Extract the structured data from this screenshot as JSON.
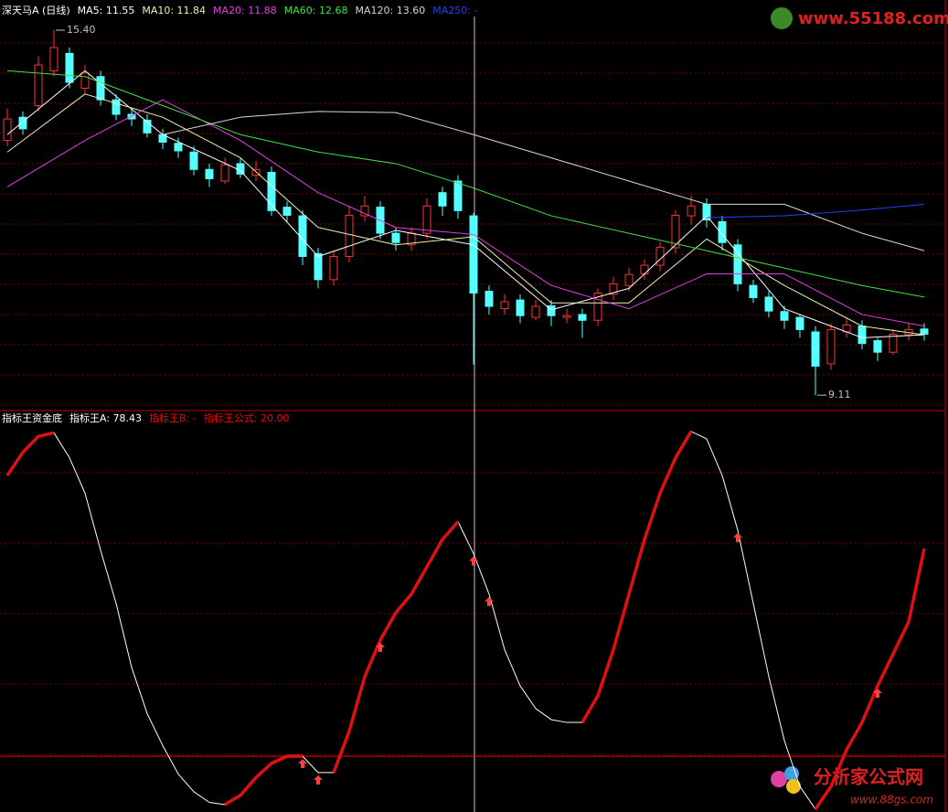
{
  "chart_data": [
    {
      "type": "candlestick",
      "title": "深天马A (日线)",
      "open": [
        13.5,
        13.9,
        14.1,
        14.7,
        15.0,
        14.4,
        14.6,
        14.2,
        13.95,
        13.85,
        13.6,
        13.45,
        13.3,
        13.0,
        12.8,
        13.1,
        12.9,
        12.95,
        12.35,
        12.2,
        11.55,
        11.1,
        11.5,
        12.2,
        12.35,
        11.9,
        11.7,
        11.9,
        12.6,
        12.8,
        12.2,
        10.9,
        10.6,
        10.75,
        10.45,
        10.65,
        10.45,
        10.5,
        10.4,
        10.85,
        11.0,
        11.2,
        11.35,
        11.65,
        12.2,
        12.4,
        12.1,
        11.7,
        11.0,
        10.8,
        10.55,
        10.45,
        10.2,
        9.65,
        10.2,
        10.3,
        10.05,
        9.85,
        10.15,
        10.25
      ],
      "high": [
        14.05,
        14.0,
        14.95,
        15.4,
        15.1,
        14.8,
        14.7,
        14.3,
        14.05,
        13.95,
        13.7,
        13.55,
        13.4,
        13.1,
        13.2,
        13.2,
        13.15,
        13.05,
        12.45,
        12.3,
        11.65,
        11.6,
        12.35,
        12.55,
        12.45,
        12.0,
        12.0,
        12.5,
        12.7,
        12.9,
        12.25,
        11.0,
        10.85,
        10.85,
        10.75,
        10.75,
        10.6,
        10.6,
        10.95,
        11.15,
        11.3,
        11.45,
        11.75,
        12.3,
        12.55,
        12.5,
        12.2,
        11.8,
        11.1,
        10.9,
        10.65,
        10.5,
        10.3,
        10.35,
        10.45,
        10.4,
        10.1,
        10.25,
        10.35,
        10.35
      ],
      "low": [
        13.4,
        13.6,
        14.0,
        14.6,
        14.4,
        14.3,
        14.1,
        13.85,
        13.75,
        13.55,
        13.35,
        13.2,
        12.9,
        12.7,
        12.75,
        12.85,
        12.8,
        12.2,
        12.1,
        11.35,
        10.95,
        11.0,
        11.4,
        12.1,
        11.8,
        11.6,
        11.6,
        11.8,
        12.2,
        12.15,
        9.64,
        10.5,
        10.5,
        10.35,
        10.4,
        10.3,
        10.35,
        10.1,
        10.3,
        10.75,
        10.9,
        11.1,
        11.25,
        11.55,
        12.05,
        12.0,
        11.6,
        10.9,
        10.7,
        10.45,
        10.25,
        10.1,
        9.11,
        9.55,
        10.1,
        9.9,
        9.7,
        9.8,
        10.05,
        10.05
      ],
      "close": [
        13.87,
        13.7,
        14.8,
        15.1,
        14.5,
        14.66,
        14.2,
        13.95,
        13.87,
        13.63,
        13.47,
        13.32,
        13.0,
        12.84,
        13.08,
        12.92,
        13.0,
        12.29,
        12.21,
        11.5,
        11.1,
        11.5,
        12.21,
        12.37,
        11.9,
        11.74,
        11.9,
        12.37,
        12.37,
        12.29,
        10.87,
        10.64,
        10.72,
        10.48,
        10.64,
        10.48,
        10.48,
        10.4,
        10.87,
        11.03,
        11.19,
        11.35,
        11.66,
        12.21,
        12.37,
        12.13,
        11.74,
        11.03,
        10.79,
        10.56,
        10.4,
        10.24,
        9.61,
        10.24,
        10.32,
        10.0,
        9.85,
        10.16,
        10.24,
        10.16
      ],
      "up_color": "#ff3232",
      "down_color": "#54ffff",
      "ylim": [
        8.86,
        15.92
      ],
      "series": [
        {
          "name": "MA5: 11.55",
          "color": "#ffffff",
          "x": [
            0,
            5,
            10,
            15,
            20,
            25,
            30,
            35,
            40,
            45,
            50,
            55,
            59
          ],
          "values": [
            13.6,
            14.7,
            13.6,
            12.98,
            11.5,
            11.95,
            11.7,
            10.58,
            10.95,
            12.2,
            10.6,
            10.1,
            10.15
          ]
        },
        {
          "name": "MA10: 11.84",
          "color": "#f0f0b0",
          "x": [
            0,
            5,
            10,
            15,
            20,
            25,
            30,
            35,
            40,
            45,
            50,
            55,
            59
          ],
          "values": [
            13.3,
            14.3,
            13.9,
            13.2,
            12.0,
            11.7,
            11.84,
            10.7,
            10.7,
            11.8,
            11.0,
            10.3,
            10.15
          ]
        },
        {
          "name": "MA20: 11.88",
          "color": "#e040e0",
          "x": [
            0,
            5,
            10,
            15,
            20,
            25,
            30,
            35,
            40,
            45,
            50,
            55,
            59
          ],
          "values": [
            12.7,
            13.5,
            14.2,
            13.5,
            12.6,
            12.0,
            11.88,
            11.0,
            10.6,
            11.2,
            11.2,
            10.5,
            10.3
          ]
        },
        {
          "name": "MA60: 12.68",
          "color": "#40e040",
          "x": [
            0,
            5,
            10,
            15,
            20,
            25,
            30,
            35,
            40,
            45,
            50,
            55,
            59
          ],
          "values": [
            14.7,
            14.6,
            14.1,
            13.6,
            13.3,
            13.1,
            12.68,
            12.2,
            11.9,
            11.6,
            11.3,
            11.0,
            10.8
          ]
        },
        {
          "name": "MA120: 13.60",
          "color": "#d8d8c8",
          "x": [
            0,
            5,
            10,
            15,
            20,
            25,
            30,
            35,
            40,
            45,
            50,
            55,
            59
          ],
          "values": [
            null,
            null,
            13.6,
            13.9,
            14.0,
            13.98,
            13.6,
            13.2,
            12.8,
            12.4,
            12.4,
            11.9,
            11.6
          ]
        },
        {
          "name": "MA250: -",
          "color": "#2040ff",
          "x": [
            0,
            5,
            10,
            15,
            20,
            25,
            30,
            35,
            40,
            45,
            50,
            55,
            59
          ],
          "values": [
            null,
            null,
            null,
            null,
            null,
            null,
            null,
            null,
            null,
            12.17,
            12.2,
            12.3,
            12.4
          ]
        }
      ],
      "annotations": [
        {
          "x": 3,
          "value": 15.4,
          "label": "15.40"
        },
        {
          "x": 52,
          "value": 9.11,
          "label": "9.11"
        }
      ]
    },
    {
      "type": "line",
      "title": "指标王资金底",
      "ylim": [
        4.3,
        117
      ],
      "series": [
        {
          "name": "指标王A: 78.43",
          "color": "#ffffff",
          "width": 1,
          "values": [
            99,
            105.5,
            110,
            111,
            104,
            94,
            78,
            63,
            45,
            32,
            23,
            15,
            10,
            7,
            6.4,
            9,
            14,
            18,
            20,
            20,
            15.4,
            15.4,
            27,
            42.4,
            52.7,
            60.4,
            65.6,
            73.3,
            81,
            86,
            77,
            65.6,
            50,
            39.8,
            33.4,
            30.3,
            29.5,
            29.5,
            37,
            50,
            65.6,
            81,
            94,
            104,
            111.4,
            109.3,
            99,
            83.6,
            63,
            42.4,
            24.4,
            11.5,
            5.1,
            11.5,
            21.8,
            29.5,
            39.8,
            48.8,
            57.8,
            78.43
          ]
        },
        {
          "name": "指标王B: -",
          "color": "#e01010",
          "width": 3.5,
          "values": [
            99,
            105.5,
            110,
            111,
            null,
            null,
            null,
            null,
            null,
            null,
            null,
            null,
            null,
            null,
            6.4,
            9,
            14,
            18,
            20,
            20,
            null,
            15.4,
            27,
            42.4,
            52.7,
            60.4,
            65.6,
            73.3,
            81,
            86,
            null,
            null,
            null,
            null,
            null,
            null,
            null,
            29.5,
            37,
            50,
            65.6,
            81,
            94,
            104,
            111.4,
            null,
            null,
            null,
            null,
            null,
            null,
            null,
            5.1,
            11.5,
            21.8,
            29.5,
            39.8,
            48.8,
            57.8,
            78.43
          ]
        }
      ],
      "level": {
        "name": "指标王公式: 20.00",
        "color": "#ff0000",
        "value": 20
      },
      "signals": {
        "color": "#ff4040",
        "x": [
          19,
          20,
          24,
          30,
          31,
          47,
          56
        ],
        "values": [
          20,
          15.4,
          52.7,
          77,
          65.6,
          83.6,
          39.8
        ]
      }
    }
  ],
  "watermarks": {
    "top": "www.55188.com",
    "bottom_cn": "分析家公式网",
    "bottom_url": "www.88gs.com"
  }
}
